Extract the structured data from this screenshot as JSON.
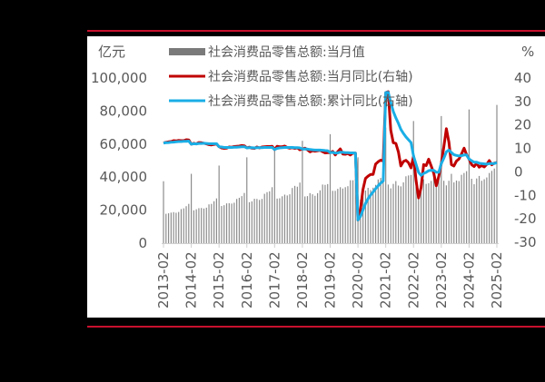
{
  "colors": {
    "bar": "#8c8c8c",
    "monthly_yoy": "#c00000",
    "cumulative_yoy": "#1aaee6",
    "axis_text": "#595959",
    "frame_rule": "#c8102e"
  },
  "chart_data": {
    "type": "bar+line",
    "title": "",
    "left_axis": {
      "unit_label": "亿元",
      "ticks": [
        "0",
        "20,000",
        "40,000",
        "60,000",
        "80,000",
        "100,000"
      ],
      "range": [
        0,
        100000
      ]
    },
    "right_axis": {
      "unit_label": "%",
      "ticks": [
        "-30",
        "-20",
        "-10",
        "0",
        "10",
        "20",
        "30",
        "40"
      ],
      "range": [
        -30,
        40
      ]
    },
    "x_tick_labels": [
      "2013-02",
      "2014-02",
      "2015-02",
      "2016-02",
      "2017-02",
      "2018-02",
      "2019-02",
      "2020-02",
      "2021-02",
      "2022-02",
      "2023-02",
      "2024-02",
      "2025-02"
    ],
    "legend": [
      {
        "label": "社会消费品零售总额:当月值",
        "kind": "bar"
      },
      {
        "label": "社会消费品零售总额:当月同比(右轴)",
        "kind": "line"
      },
      {
        "label": "社会消费品零售总额:累计同比(右轴)",
        "kind": "line"
      }
    ],
    "series": [
      {
        "name": "社会消费品零售总额:当月值",
        "axis": "left",
        "type": "bar",
        "values": [
          37500,
          17800,
          18100,
          18500,
          18800,
          18400,
          18900,
          20650,
          21100,
          22400,
          23800,
          42000,
          19900,
          20500,
          21200,
          21300,
          21000,
          21500,
          23500,
          23800,
          25400,
          27100,
          47000,
          22500,
          23000,
          24100,
          24200,
          24000,
          24500,
          26800,
          27500,
          28500,
          30400,
          52000,
          24800,
          25300,
          26900,
          26800,
          26200,
          26800,
          29900,
          30900,
          31400,
          33900,
          58000,
          27000,
          27200,
          28400,
          29400,
          28900,
          29600,
          33400,
          34700,
          34200,
          36700,
          62000,
          28300,
          28500,
          30300,
          29600,
          28700,
          30300,
          32000,
          35500,
          35300,
          35800,
          66000,
          31700,
          31700,
          32900,
          33900,
          33100,
          33900,
          34500,
          38100,
          38100,
          38800,
          52000,
          26400,
          28200,
          31900,
          33500,
          32200,
          33600,
          35300,
          38600,
          39500,
          40600,
          70000,
          35500,
          33200,
          35900,
          37600,
          34900,
          34400,
          36800,
          40500,
          41000,
          41300,
          74000,
          34200,
          29500,
          33500,
          38700,
          35900,
          36300,
          37700,
          40300,
          38600,
          40500,
          77000,
          37800,
          35000,
          37800,
          42000,
          36800,
          37900,
          37600,
          41400,
          42500,
          43600,
          81000,
          39000,
          35700,
          39200,
          40700,
          37800,
          38700,
          39800,
          42500,
          43800,
          45200,
          83700
        ]
      },
      {
        "name": "社会消费品零售总额:当月同比(右轴)",
        "axis": "right",
        "type": "line",
        "values": [
          12.3,
          12.6,
          12.8,
          12.9,
          13.3,
          13.2,
          13.4,
          13.3,
          13.3,
          13.7,
          13.6,
          11.8,
          12.2,
          11.9,
          12.5,
          12.4,
          12.2,
          11.9,
          11.6,
          11.5,
          11.7,
          11.9,
          10.7,
          10.2,
          10.0,
          10.1,
          10.6,
          10.5,
          10.8,
          10.9,
          11.0,
          11.2,
          11.1,
          10.2,
          10.5,
          10.1,
          10.0,
          10.6,
          10.2,
          10.6,
          10.7,
          10.8,
          10.8,
          10.9,
          9.5,
          10.9,
          10.7,
          10.7,
          11.0,
          10.4,
          10.1,
          10.3,
          10.0,
          10.2,
          9.4,
          9.7,
          10.1,
          9.4,
          8.5,
          9.0,
          8.8,
          9.0,
          9.2,
          8.6,
          8.1,
          8.2,
          8.2,
          8.7,
          7.2,
          8.6,
          9.8,
          7.6,
          7.5,
          7.8,
          7.2,
          8.0,
          8.0,
          -20.5,
          -15.8,
          -7.5,
          -2.8,
          -1.8,
          -1.1,
          -1.1,
          3.3,
          4.3,
          5.0,
          4.6,
          33.8,
          34.2,
          17.7,
          12.4,
          12.1,
          8.5,
          2.5,
          4.4,
          4.9,
          3.9,
          1.7,
          6.7,
          -3.5,
          -11.1,
          -6.7,
          3.1,
          2.7,
          5.4,
          2.5,
          -0.5,
          -5.9,
          -1.8,
          3.5,
          10.6,
          18.4,
          12.7,
          3.1,
          2.5,
          4.6,
          5.5,
          7.6,
          10.1,
          7.4,
          5.5,
          3.1,
          2.3,
          3.7,
          2.0,
          2.7,
          2.1,
          3.2,
          4.8,
          3.0,
          3.7,
          4.0
        ]
      },
      {
        "name": "社会消费品零售总额:累计同比(右轴)",
        "axis": "right",
        "type": "line",
        "values": [
          12.3,
          12.4,
          12.5,
          12.6,
          12.7,
          12.8,
          12.9,
          12.9,
          13.0,
          13.0,
          13.1,
          11.8,
          12.0,
          11.9,
          12.1,
          12.1,
          12.2,
          12.1,
          12.0,
          12.0,
          12.0,
          12.0,
          10.7,
          10.6,
          10.4,
          10.4,
          10.4,
          10.4,
          10.5,
          10.5,
          10.6,
          10.7,
          10.7,
          10.2,
          10.3,
          10.3,
          10.2,
          10.3,
          10.3,
          10.3,
          10.4,
          10.4,
          10.4,
          10.4,
          9.5,
          10.0,
          10.2,
          10.3,
          10.4,
          10.4,
          10.4,
          10.4,
          10.3,
          10.3,
          10.2,
          9.7,
          9.8,
          9.7,
          9.5,
          9.4,
          9.3,
          9.3,
          9.3,
          9.2,
          9.1,
          9.0,
          8.2,
          8.3,
          8.0,
          8.1,
          8.4,
          8.3,
          8.2,
          8.2,
          8.1,
          8.1,
          8.0,
          -20.5,
          -19.0,
          -16.2,
          -13.5,
          -11.4,
          -9.9,
          -8.6,
          -7.2,
          -5.9,
          -4.8,
          -3.9,
          33.8,
          33.9,
          29.6,
          25.7,
          23.0,
          20.7,
          18.1,
          16.4,
          14.9,
          13.7,
          12.5,
          6.7,
          3.3,
          -0.2,
          -1.5,
          -0.7,
          -0.2,
          0.5,
          0.7,
          0.6,
          -0.1,
          -0.2,
          3.5,
          5.8,
          8.5,
          9.3,
          8.2,
          7.3,
          7.0,
          6.8,
          6.9,
          7.2,
          7.2,
          5.5,
          4.7,
          4.1,
          4.1,
          3.7,
          3.5,
          3.4,
          3.3,
          3.5,
          3.5,
          3.5,
          4.0
        ]
      }
    ]
  }
}
